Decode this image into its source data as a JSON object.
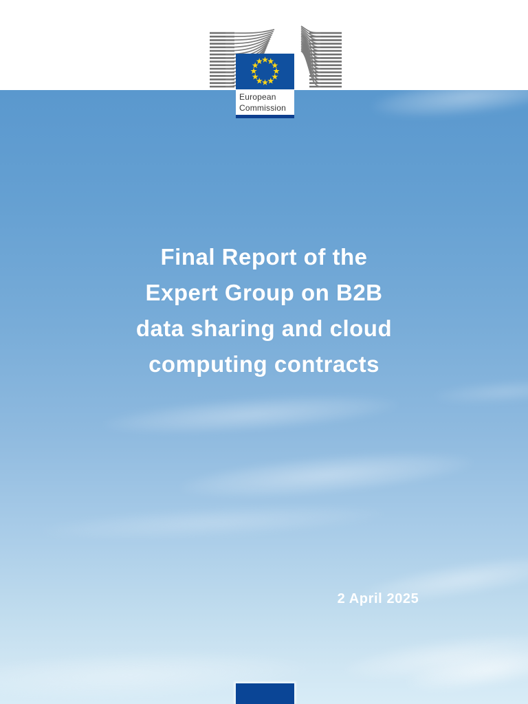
{
  "header": {
    "logo": {
      "line1": "European",
      "line2": "Commission"
    }
  },
  "cover": {
    "title_lines": [
      "Final Report of the",
      "Expert Group on B2B",
      "data sharing and cloud",
      "computing contracts"
    ],
    "date": "2 April 2025"
  },
  "colors": {
    "flag_blue": "#10509f",
    "star_yellow": "#ffd617",
    "logo_bar_blue": "#0d3f8f",
    "footer_blue": "#0a4596",
    "sky_top": "#5a98ce",
    "sky_bottom": "#d8ecf7",
    "building_gray": "#6f6f6f",
    "title_white": "#ffffff"
  }
}
